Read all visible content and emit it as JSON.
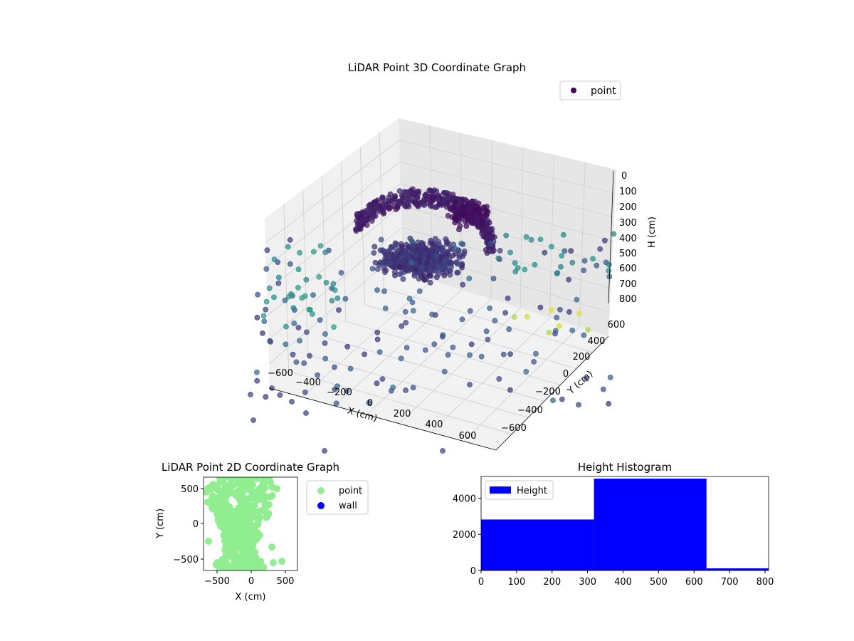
{
  "colors": {
    "point_2d": "#90ee90",
    "wall": "#0000ff",
    "histogram": "#0000ff",
    "legend_point_3d": "#440154"
  },
  "chart_data": [
    {
      "type": "scatter3d",
      "title": "LiDAR Point 3D Coordinate Graph",
      "xlabel": "X (cm)",
      "ylabel": "Y (cm)",
      "zlabel": "H (cm)",
      "xticks": [
        "−600",
        "−400",
        "−200",
        "0",
        "200",
        "400",
        "600"
      ],
      "yticks": [
        "−600",
        "−400",
        "−200",
        "0",
        "200",
        "400",
        "600"
      ],
      "zticks": [
        "0",
        "100",
        "200",
        "300",
        "400",
        "500",
        "600",
        "700",
        "800"
      ],
      "xlim": [
        -700,
        650
      ],
      "ylim": [
        -700,
        650
      ],
      "zlim": [
        0,
        800
      ],
      "zaxis_inverted": true,
      "colormap": "viridis",
      "legend": [
        "point"
      ],
      "legend_position": "top-right",
      "grid": true
    },
    {
      "type": "scatter",
      "title": "LiDAR Point 2D Coordinate Graph",
      "xlabel": "X (cm)",
      "ylabel": "Y (cm)",
      "xticks": [
        "−500",
        "0",
        "500"
      ],
      "yticks": [
        "500",
        "0",
        "−500"
      ],
      "xlim": [
        -700,
        650
      ],
      "ylim": [
        -680,
        700
      ],
      "legend": [
        "point",
        "wall"
      ],
      "legend_position": "outside-right",
      "series": [
        {
          "name": "point",
          "color": "#90ee90"
        },
        {
          "name": "wall",
          "color": "#0000ff"
        }
      ]
    },
    {
      "type": "bar",
      "title": "Height Histogram",
      "xticks": [
        "0",
        "100",
        "200",
        "300",
        "400",
        "500",
        "600",
        "700",
        "800"
      ],
      "yticks": [
        "0",
        "2000",
        "4000"
      ],
      "xlim": [
        0,
        810
      ],
      "ylim": [
        0,
        5200
      ],
      "legend": [
        "Height"
      ],
      "legend_position": "top-left",
      "bins": [
        {
          "x0": 0,
          "x1": 318,
          "count": 2820
        },
        {
          "x0": 318,
          "x1": 635,
          "count": 5080
        },
        {
          "x0": 635,
          "x1": 810,
          "count": 120
        }
      ]
    }
  ]
}
